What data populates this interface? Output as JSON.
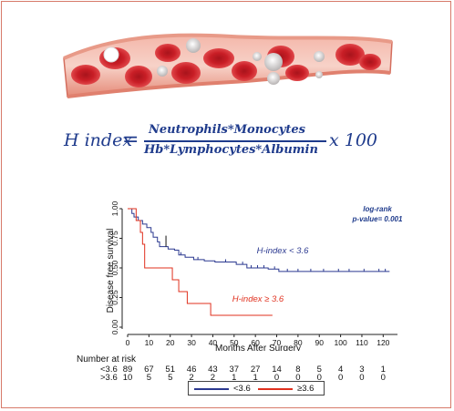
{
  "formula": {
    "lhs": "H index",
    "eq": "=",
    "numerator": "Neutrophils*Monocytes",
    "denominator": "Hb*Lymphocytes*Albumin",
    "multiplier": "x 100"
  },
  "colors": {
    "blue": "#1f3b8c",
    "red": "#e8432a",
    "curve_blue": "#2b3990",
    "curve_red": "#e0301e"
  },
  "chart_data": {
    "type": "line",
    "xlabel": "Months After Surgery",
    "ylabel": "Disease free survival",
    "xlim": [
      0,
      125
    ],
    "ylim": [
      0,
      1.0
    ],
    "x_ticks": [
      0,
      10,
      20,
      30,
      40,
      50,
      60,
      70,
      80,
      90,
      100,
      110,
      120
    ],
    "y_ticks": [
      "0.00",
      "0.25",
      "0.50",
      "0.75",
      "1.00"
    ],
    "y_tick_values": [
      0,
      0.25,
      0.5,
      0.75,
      1.0
    ],
    "annotation_logrank": "log-rank",
    "annotation_pvalue": "p-value= 0.001",
    "series": [
      {
        "name": "H-index < 3.6",
        "color": "#2b3990",
        "steps": [
          [
            0,
            1.0
          ],
          [
            2,
            0.96
          ],
          [
            3,
            0.93
          ],
          [
            5,
            0.9
          ],
          [
            7,
            0.87
          ],
          [
            9,
            0.84
          ],
          [
            11,
            0.8
          ],
          [
            12,
            0.76
          ],
          [
            14,
            0.72
          ],
          [
            15,
            0.68
          ],
          [
            19,
            0.66
          ],
          [
            22,
            0.65
          ],
          [
            24,
            0.61
          ],
          [
            27,
            0.59
          ],
          [
            31,
            0.57
          ],
          [
            36,
            0.56
          ],
          [
            41,
            0.55
          ],
          [
            51,
            0.53
          ],
          [
            56,
            0.5
          ],
          [
            66,
            0.49
          ],
          [
            71,
            0.47
          ],
          [
            123,
            0.47
          ]
        ],
        "censor_x": [
          18,
          25,
          33,
          46,
          54,
          58,
          61,
          64,
          69,
          75,
          80,
          86,
          92,
          99,
          104,
          111,
          118,
          121
        ]
      },
      {
        "name": "H-index ≥ 3.6",
        "color": "#e0301e",
        "steps": [
          [
            0,
            1.0
          ],
          [
            4,
            0.9
          ],
          [
            6,
            0.8
          ],
          [
            7,
            0.7
          ],
          [
            8,
            0.5
          ],
          [
            21,
            0.4
          ],
          [
            24,
            0.3
          ],
          [
            28,
            0.2
          ],
          [
            39,
            0.1
          ],
          [
            68,
            0.1
          ]
        ],
        "censor_x": []
      }
    ],
    "risk_table": {
      "title": "Number at risk",
      "rows": [
        {
          "label": "<3.6",
          "values": [
            "89",
            "67",
            "51",
            "46",
            "43",
            "37",
            "27",
            "14",
            "8",
            "5",
            "4",
            "3",
            "1"
          ]
        },
        {
          "label": ">3.6",
          "values": [
            "10",
            "5",
            "5",
            "2",
            "2",
            "1",
            "1",
            "0",
            "0",
            "0",
            "0",
            "0",
            "0"
          ]
        }
      ]
    },
    "legend": {
      "entry1": "<3.6",
      "entry2": "≥3.6"
    }
  }
}
